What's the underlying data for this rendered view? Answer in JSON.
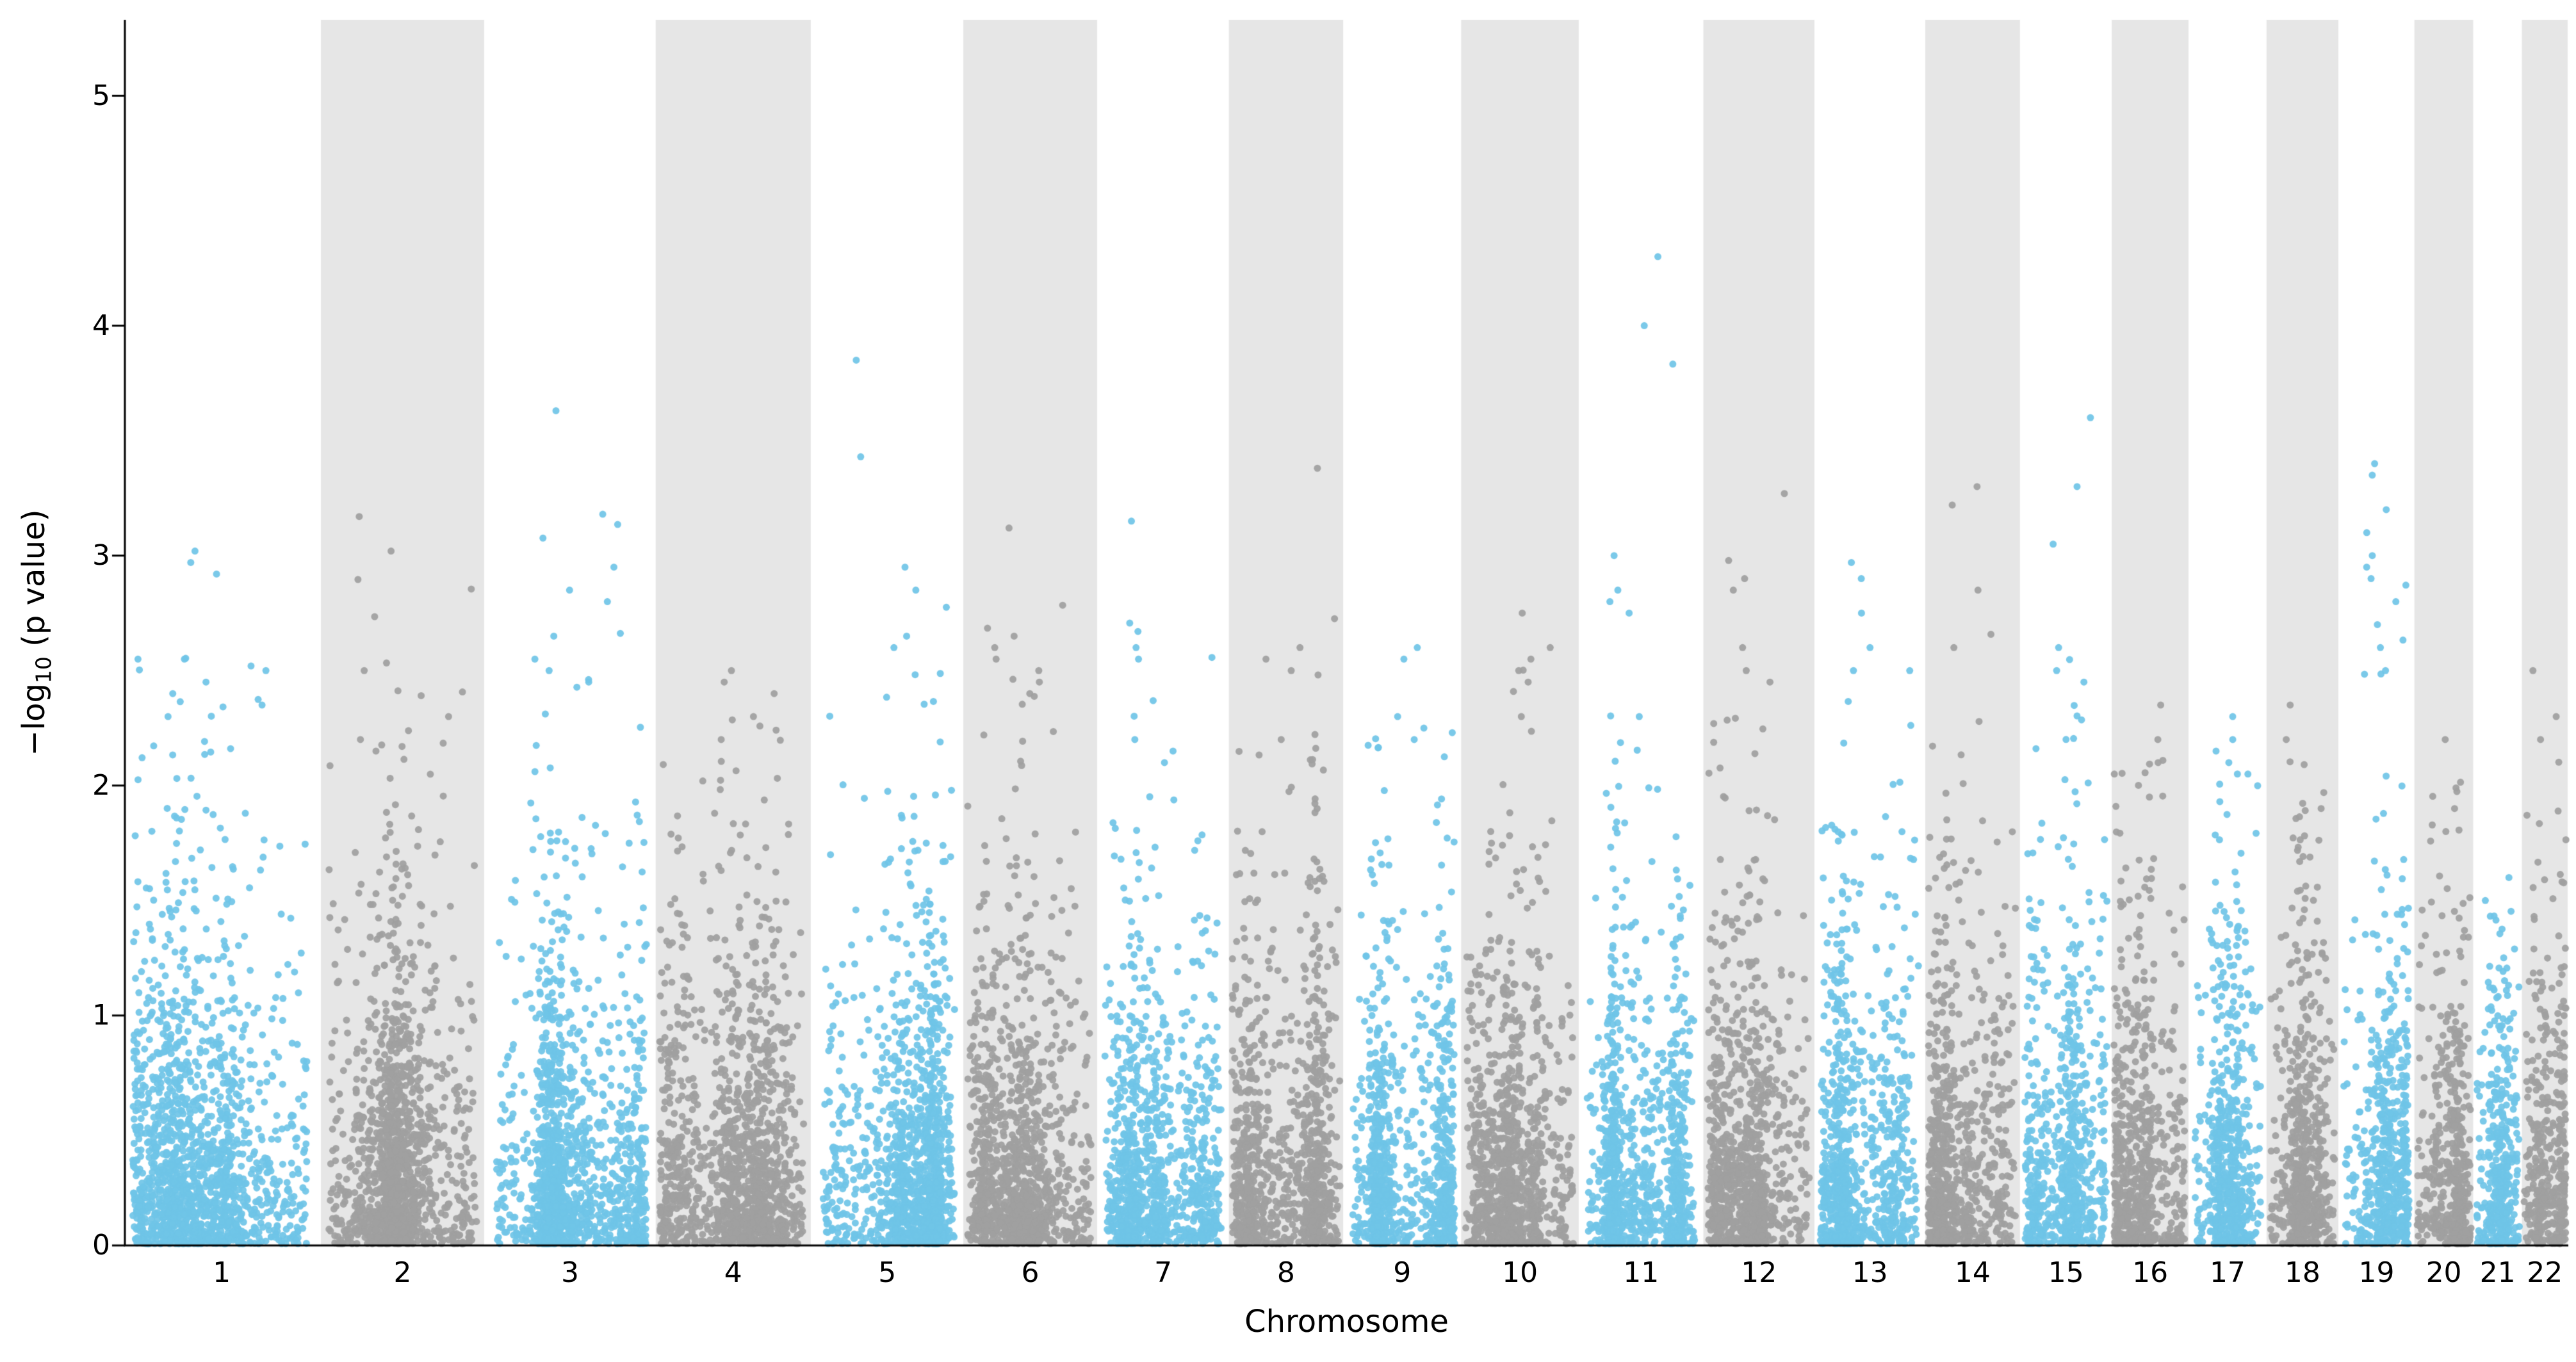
{
  "chart_data": {
    "type": "scatter",
    "variant": "manhattan",
    "title": "",
    "xlabel": "Chromosome",
    "ylabel_parts": {
      "prefix": "−log",
      "sub": "10",
      "suffix": " (p value)"
    },
    "ylim": [
      0,
      5.33
    ],
    "yticks": [
      0,
      1,
      2,
      3,
      4,
      5
    ],
    "grid": false,
    "legend": "none",
    "colors": {
      "odd_points": "#6FC4E7",
      "even_points": "#A0A0A0",
      "band": "#E6E6E6",
      "axis": "#000000",
      "background": "#FFFFFF"
    },
    "point_radius": 5.5,
    "points_per_unit": 14,
    "seed": 7,
    "chromosomes": [
      {
        "label": "1",
        "size": 115,
        "max": 3.02,
        "peaks": [
          3.02,
          2.97,
          2.92,
          2.55,
          2.52,
          2.5,
          2.45,
          2.4,
          2.35,
          2.3
        ]
      },
      {
        "label": "2",
        "size": 100,
        "max": 3.17,
        "peaks": [
          3.17,
          3.02,
          2.5,
          2.3,
          2.2,
          2.15
        ]
      },
      {
        "label": "3",
        "size": 99,
        "max": 3.63,
        "peaks": [
          3.63,
          3.18,
          2.95,
          2.85,
          2.8,
          2.65,
          2.55,
          2.5,
          2.45
        ]
      },
      {
        "label": "4",
        "size": 95,
        "max": 2.5,
        "peaks": [
          2.5,
          2.45,
          2.4,
          2.3,
          2.2
        ]
      },
      {
        "label": "5",
        "size": 88,
        "max": 3.85,
        "peaks": [
          3.85,
          3.43,
          2.95,
          2.85,
          2.65,
          2.6
        ]
      },
      {
        "label": "6",
        "size": 82,
        "max": 3.12,
        "peaks": [
          3.12,
          2.65,
          2.6,
          2.55,
          2.5,
          2.45,
          2.4
        ]
      },
      {
        "label": "7",
        "size": 76,
        "max": 3.15,
        "peaks": [
          3.15,
          2.55,
          2.2,
          2.15,
          2.1
        ]
      },
      {
        "label": "8",
        "size": 70,
        "max": 3.38,
        "peaks": [
          3.38,
          2.6,
          2.55,
          2.5,
          2.2
        ]
      },
      {
        "label": "9",
        "size": 68,
        "max": 2.6,
        "peaks": [
          2.6,
          2.55,
          2.3,
          2.25,
          2.2
        ]
      },
      {
        "label": "10",
        "size": 72,
        "max": 2.75,
        "peaks": [
          2.75,
          2.6,
          2.55,
          2.5,
          2.45,
          2.3
        ]
      },
      {
        "label": "11",
        "size": 72,
        "max": 4.3,
        "peaks": [
          4.3,
          4.0,
          3.0,
          2.85,
          2.8,
          2.75,
          2.3
        ]
      },
      {
        "label": "12",
        "size": 68,
        "max": 3.27,
        "peaks": [
          3.27,
          2.9,
          2.85,
          2.6,
          2.5,
          2.45
        ]
      },
      {
        "label": "13",
        "size": 64,
        "max": 2.97,
        "peaks": [
          2.97,
          2.9,
          2.75,
          2.6,
          2.5
        ]
      },
      {
        "label": "14",
        "size": 58,
        "max": 3.3,
        "peaks": [
          3.3,
          3.22,
          2.85,
          2.6
        ]
      },
      {
        "label": "15",
        "size": 53,
        "max": 3.6,
        "peaks": [
          3.6,
          3.3,
          3.05,
          2.6,
          2.5,
          2.45
        ]
      },
      {
        "label": "16",
        "size": 47,
        "max": 2.35,
        "peaks": [
          2.35,
          2.2,
          2.1,
          1.95
        ]
      },
      {
        "label": "17",
        "size": 45,
        "max": 2.3,
        "peaks": [
          2.3,
          2.2,
          2.15,
          2.1,
          2.05
        ]
      },
      {
        "label": "18",
        "size": 44,
        "max": 2.35,
        "peaks": [
          2.35,
          2.2,
          1.9
        ]
      },
      {
        "label": "19",
        "size": 44,
        "max": 3.4,
        "peaks": [
          3.4,
          3.35,
          3.2,
          3.1,
          3.0,
          2.95,
          2.9,
          2.8,
          2.7,
          2.6,
          2.5
        ]
      },
      {
        "label": "20",
        "size": 36,
        "max": 2.2,
        "peaks": [
          2.2,
          1.9,
          1.8
        ]
      },
      {
        "label": "21",
        "size": 28,
        "max": 1.6,
        "peaks": [
          1.6,
          1.5
        ]
      },
      {
        "label": "22",
        "size": 28,
        "max": 2.5,
        "peaks": [
          2.5,
          2.3,
          2.2
        ]
      }
    ]
  }
}
